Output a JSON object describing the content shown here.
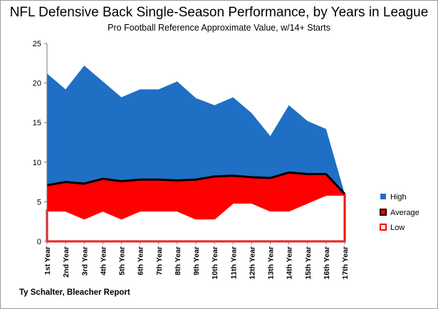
{
  "chart_data": {
    "type": "area",
    "title": "NFL Defensive Back Single-Season Performance, by Years in League",
    "subtitle": "Pro Football Reference Approximate Value, w/14+ Starts",
    "credit": "Ty Schalter, Bleacher Report",
    "categories": [
      "1st Year",
      "2nd Year",
      "3rd Year",
      "4th Year",
      "5th Year",
      "6th Year",
      "7th Year",
      "8th Year",
      "9th Year",
      "10th Year",
      "11th Year",
      "12th Year",
      "13th Year",
      "14th Year",
      "15th Year",
      "16th Year",
      "17th Year"
    ],
    "ylim": [
      0,
      25
    ],
    "yticks": [
      "0",
      "5",
      "10",
      "15",
      "20",
      "25"
    ],
    "grid": false,
    "legend_position": "right",
    "series": [
      {
        "name": "High",
        "color": "#1f6fc5",
        "values": [
          21.2,
          19.2,
          22.2,
          20.2,
          18.2,
          19.2,
          19.2,
          20.2,
          18.1,
          17.2,
          18.2,
          16.2,
          13.3,
          17.2,
          15.2,
          14.2,
          6.0
        ]
      },
      {
        "name": "Average",
        "color": "#000000",
        "values": [
          7.1,
          7.5,
          7.3,
          7.9,
          7.6,
          7.8,
          7.8,
          7.7,
          7.8,
          8.2,
          8.3,
          8.1,
          8.0,
          8.7,
          8.5,
          8.5,
          6.0
        ]
      },
      {
        "name": "Low",
        "color": "#ff0000",
        "values": [
          3.9,
          3.9,
          2.9,
          3.9,
          2.9,
          3.9,
          3.9,
          3.9,
          2.9,
          2.9,
          4.9,
          4.9,
          3.9,
          3.9,
          4.9,
          5.9,
          5.9
        ]
      }
    ]
  }
}
